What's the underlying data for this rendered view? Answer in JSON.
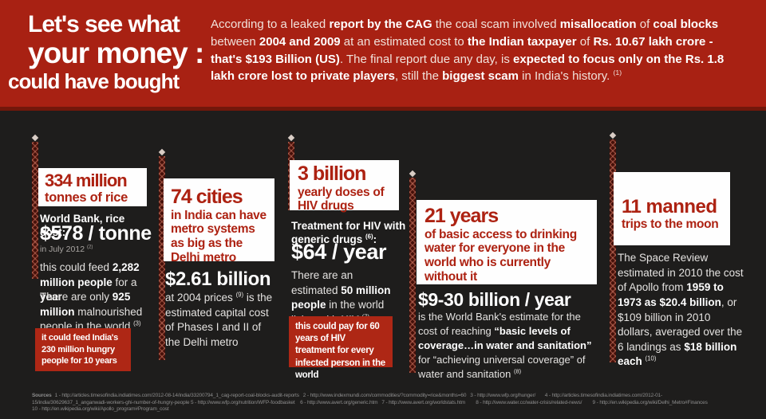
{
  "colors": {
    "header_red": "#a82113",
    "header_border_red": "#72170b",
    "background_dark": "#1e1d1c",
    "card_white": "#fefefe",
    "card_text_red": "#ad2212",
    "callout_red": "#ae2715",
    "body_text": "#e4e2e0",
    "sources_gray": "#8d8d8d"
  },
  "header": {
    "title_lines": [
      "Let's see what",
      "your money :",
      "could have bought"
    ],
    "intro": [
      {
        "t": "According to a leaked "
      },
      {
        "t": "report by the CAG",
        "b": true
      },
      {
        "t": " the coal scam involved "
      },
      {
        "t": "misallocation",
        "b": true
      },
      {
        "t": " of "
      },
      {
        "t": "coal blocks",
        "b": true
      },
      {
        "t": " between "
      },
      {
        "t": "2004 and 2009",
        "b": true
      },
      {
        "t": " at an estimated cost to "
      },
      {
        "t": "the Indian taxpayer",
        "b": true
      },
      {
        "t": " of "
      },
      {
        "t": "Rs. 10.67 lakh crore - that's $193 Billion (US)",
        "b": true
      },
      {
        "t": ". The final report due any day, is "
      },
      {
        "t": "expected to focus only on the Rs. 1.8 lakh crore lost to private players",
        "b": true
      },
      {
        "t": ", still the "
      },
      {
        "t": "biggest scam",
        "b": true
      },
      {
        "t": " in India's history. "
      },
      {
        "t": "(1)",
        "sup": true
      }
    ]
  },
  "columns": {
    "rice": {
      "headline_big": "334 million",
      "headline_small": "tonnes of rice",
      "cost_label": "World Bank, rice cost:",
      "cost_value": "$578 / tonne",
      "cost_note": [
        {
          "t": "in July 2012 "
        },
        {
          "t": "(2)",
          "sup": true
        }
      ],
      "fact1": [
        {
          "t": "this could feed "
        },
        {
          "t": "2,282 million people",
          "b": true
        },
        {
          "t": " for a "
        },
        {
          "t": "year",
          "b": true
        }
      ],
      "fact2": [
        {
          "t": "There are only "
        },
        {
          "t": "925 million",
          "b": true
        },
        {
          "t": " malnourished people in the world "
        },
        {
          "t": "(3)",
          "sup": true
        }
      ],
      "callout": "it could feed India's 230 million hungry people for 10 years"
    },
    "metro": {
      "headline_big": "74 cities",
      "headline_small": "in India can have metro systems as big as the Delhi metro",
      "cost_value": "$2.61 billion",
      "fact1": [
        {
          "t": "at 2004 prices "
        },
        {
          "t": "(9)",
          "sup": true
        },
        {
          "t": " is the estimated capital cost of Phases I and II of the Delhi metro"
        }
      ]
    },
    "hiv": {
      "headline_big": "3 billion",
      "headline_small": "yearly doses of HIV drugs",
      "cost_label": [
        {
          "t": "Treatment for HIV with generic drugs ",
          "b": true
        },
        {
          "t": "(6)",
          "b": true,
          "sup": true
        },
        {
          "t": ":",
          "b": true
        }
      ],
      "cost_value": "$64 / year",
      "fact1": [
        {
          "t": "There are an estimated "
        },
        {
          "t": "50 million people",
          "b": true
        },
        {
          "t": " in the world living with "
        },
        {
          "t": "HIV ",
          "b": true
        },
        {
          "t": "(7)",
          "sup": true
        }
      ],
      "callout": "this could pay for 60 years of HIV treatment for every infected person in the world"
    },
    "water": {
      "headline_big": "21 years",
      "headline_small": "of basic access to drinking water for everyone in the world who is currently without it",
      "cost_value": "$9-30 billion / year",
      "fact1": [
        {
          "t": "is the World Bank's estimate for the cost of reaching "
        },
        {
          "t": "“basic levels of coverage…in water and sanitation”",
          "b": true
        },
        {
          "t": " for “achieving universal coverage” of water and sanitation "
        },
        {
          "t": "(8)",
          "sup": true
        }
      ]
    },
    "moon": {
      "headline_big": "11 manned",
      "headline_small": "trips to the moon",
      "fact1": [
        {
          "t": "The Space Review estimated in 2010 the cost of Apollo from "
        },
        {
          "t": "1959 to 1973 as $20.4 billion",
          "b": true
        },
        {
          "t": ", or $109 billion in 2010 dollars, averaged over the 6 landings as "
        },
        {
          "t": "$18 billion each",
          "b": true
        },
        {
          "t": " "
        },
        {
          "t": "(10)",
          "sup": true
        }
      ]
    }
  },
  "sources": {
    "label": "Sources",
    "lines": [
      "1 - http://articles.timesofindia.indiatimes.com/2012-08-14/india/33200794_1_cag-report-coal-blocks-audit-reports   2 - http://www.indexmundi.com/commodities/?commodity=rice&months=60   3 - http://www.wfp.org/hunger/       4 - http://articles.timesofindia.indiatimes.com/2012-01-",
      "15/india/30629637_1_anganwadi-workers-ghi-number-of-hungry-people 5 - http://www.wfp.org/nutrition/WFP-foodbasket    6 - http://www.avert.org/generic.htm   7 - http://www.avert.org/worldstats.htm        8 - http://www.water.cc/water-crisis/related-news/        9 - http://en.wikipedia.org/wiki/Delhi_Metro#Finances",
      "10 - http://en.wikipedia.org/wiki/Apollo_program#Program_cost"
    ]
  }
}
